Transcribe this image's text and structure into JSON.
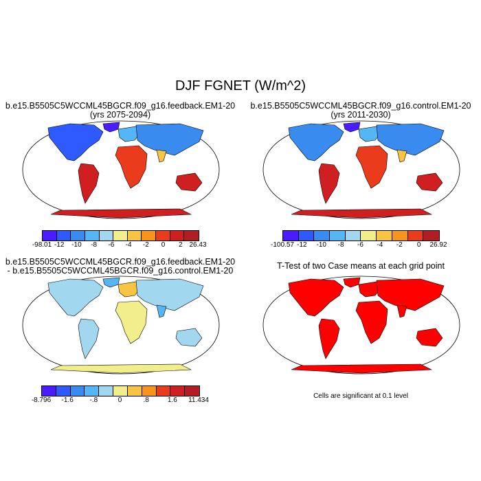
{
  "figure": {
    "title": "DJF FGNET (W/m^2)"
  },
  "panels": [
    {
      "title_line1": "b.e15.B5505C5WCCML45BGCR.f09_g16.feedback.EM1-20",
      "title_line2": "(yrs 2075-2094)",
      "colorbar": {
        "colors": [
          "#4b1cff",
          "#2f5aff",
          "#3a8bf0",
          "#55b6f5",
          "#a2d8ef",
          "#f2ee8c",
          "#f7c443",
          "#f7941d",
          "#ea3b1c",
          "#d01f20",
          "#b31c24"
        ],
        "labels": [
          "-98.01",
          "-12",
          "-10",
          "-8",
          "-6",
          "-4",
          "-2",
          "0",
          "2",
          "26.43"
        ]
      }
    },
    {
      "title_line1": "b.e15.B5505C5WCCML45BGCR.f09_g16.control.EM1-20",
      "title_line2": "(yrs 2011-2030)",
      "colorbar": {
        "colors": [
          "#4b1cff",
          "#2f5aff",
          "#3a8bf0",
          "#55b6f5",
          "#a2d8ef",
          "#f2ee8c",
          "#f7c443",
          "#f7941d",
          "#ea3b1c",
          "#b31c24"
        ],
        "labels": [
          "-100.57",
          "-12",
          "-10",
          "-8",
          "-6",
          "-4",
          "-2",
          "0",
          "26.92"
        ]
      }
    },
    {
      "title_line1": "b.e15.B5505C5WCCML45BGCR.f09_g16.feedback.EM1-20",
      "title_line2": "- b.e15.B5505C5WCCML45BGCR.f09_g16.control.EM1-20",
      "colorbar": {
        "colors": [
          "#4b1cff",
          "#2f5aff",
          "#3a8bf0",
          "#55b6f5",
          "#a2d8ef",
          "#f2ee8c",
          "#f7c443",
          "#f7941d",
          "#ea3b1c",
          "#d01f20",
          "#b31c24"
        ],
        "labels": [
          "-8.796",
          "-1.6",
          "-.8",
          "0",
          ".8",
          "1.6",
          "11.434"
        ]
      }
    },
    {
      "title_line1": "T-Test of two Case means at each grid point",
      "note": "Cells are significant at 0.1 level"
    }
  ]
}
